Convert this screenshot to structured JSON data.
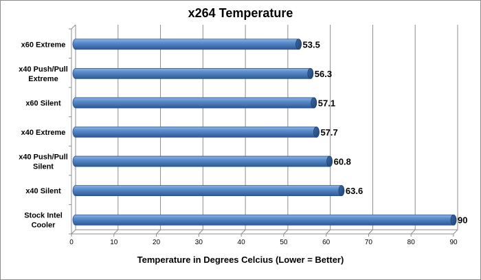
{
  "chart_data": {
    "type": "bar",
    "orientation": "horizontal",
    "title": "x264 Temperature",
    "xlabel": "Temperature in Degrees Celcius (Lower = Better)",
    "ylabel": "",
    "categories": [
      [
        "x60 Extreme"
      ],
      [
        "x40 Push/Pull",
        "Extreme"
      ],
      [
        "x60 Silent"
      ],
      [
        "x40 Extreme"
      ],
      [
        "x40 Push/Pull",
        "Silent"
      ],
      [
        "x40 Silent"
      ],
      [
        "Stock Intel",
        "Cooler"
      ]
    ],
    "values": [
      53.5,
      56.3,
      57.1,
      57.7,
      60.8,
      63.6,
      90
    ],
    "value_labels": [
      "53.5",
      "56.3",
      "57.1",
      "57.7",
      "60.8",
      "63.6",
      "90"
    ],
    "xlim": [
      0,
      90
    ],
    "xticks": [
      "0",
      "10",
      "20",
      "30",
      "40",
      "50",
      "60",
      "70",
      "80",
      "90"
    ],
    "grid": true,
    "bar_color": "#4a7ebb",
    "legend": "none"
  }
}
